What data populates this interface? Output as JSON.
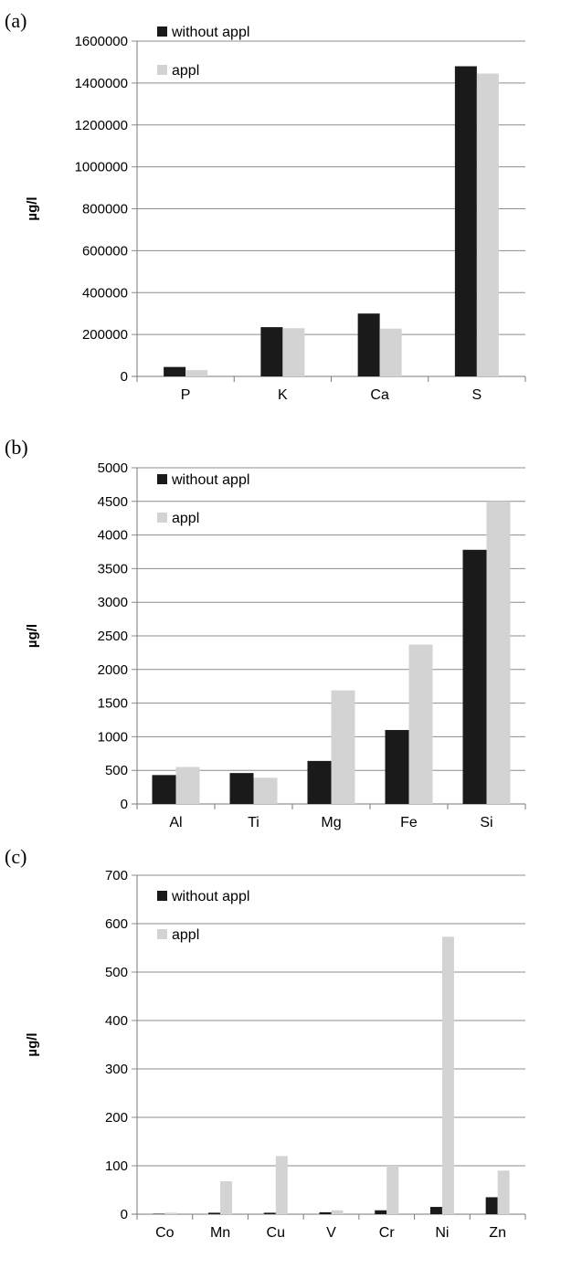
{
  "series_colors": {
    "without appl": "#1a1a1a",
    "appl": "#d3d3d3"
  },
  "chart_data": [
    {
      "panel_label": "(a)",
      "type": "bar",
      "ylabel": "µg/l",
      "ylim": [
        0,
        1600000
      ],
      "yticks": [
        0,
        200000,
        400000,
        600000,
        800000,
        1000000,
        1200000,
        1400000,
        1600000
      ],
      "grid": true,
      "legend_position": "top-left",
      "categories": [
        "P",
        "K",
        "Ca",
        "S"
      ],
      "series": [
        {
          "name": "without appl",
          "values": [
            45000,
            235000,
            300000,
            1480000
          ]
        },
        {
          "name": "appl",
          "values": [
            30000,
            230000,
            228000,
            1445000
          ]
        }
      ]
    },
    {
      "panel_label": "(b)",
      "type": "bar",
      "ylabel": "µg/l",
      "ylim": [
        0,
        5000
      ],
      "yticks": [
        0,
        500,
        1000,
        1500,
        2000,
        2500,
        3000,
        3500,
        4000,
        4500,
        5000
      ],
      "grid": true,
      "legend_position": "top-left",
      "categories": [
        "Al",
        "Ti",
        "Mg",
        "Fe",
        "Si"
      ],
      "series": [
        {
          "name": "without appl",
          "values": [
            430,
            460,
            640,
            1100,
            3780
          ]
        },
        {
          "name": "appl",
          "values": [
            550,
            390,
            1690,
            2370,
            4500
          ]
        }
      ]
    },
    {
      "panel_label": "(c)",
      "type": "bar",
      "ylabel": "µg/l",
      "ylim": [
        0,
        700
      ],
      "yticks": [
        0,
        100,
        200,
        300,
        400,
        500,
        600,
        700
      ],
      "grid": true,
      "legend_position": "top-left",
      "categories": [
        "Co",
        "Mn",
        "Cu",
        "V",
        "Cr",
        "Ni",
        "Zn"
      ],
      "series": [
        {
          "name": "without appl",
          "values": [
            1,
            3,
            3,
            4,
            8,
            15,
            35
          ]
        },
        {
          "name": "appl",
          "values": [
            3,
            68,
            120,
            8,
            100,
            573,
            90
          ]
        }
      ]
    }
  ]
}
